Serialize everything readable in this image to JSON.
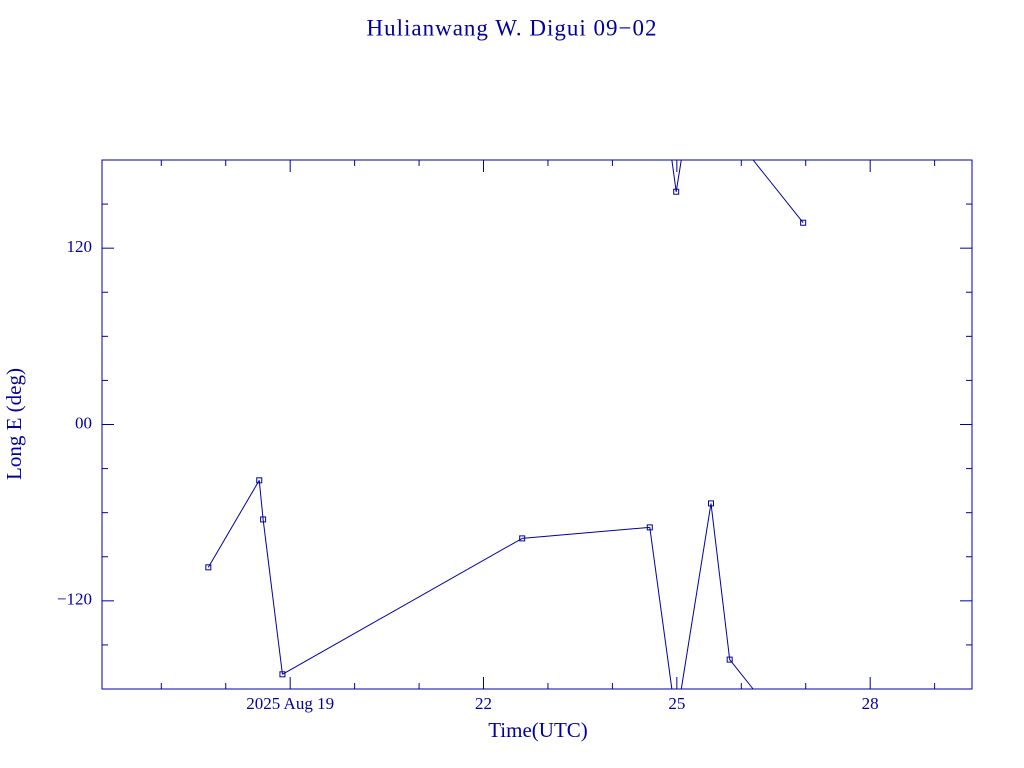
{
  "chart_data": {
    "type": "line",
    "title": "Hulianwang W. Digui 09−02",
    "xlabel": "Time(UTC)",
    "ylabel": "Long E (deg)",
    "x": [
      17.73,
      18.52,
      18.58,
      18.88,
      22.6,
      24.58,
      24.99,
      25.53,
      25.82,
      26.96
    ],
    "series": [
      {
        "color": "#0000a0",
        "values": [
          -97.2,
          -38,
          -64.6,
          -170,
          -77.5,
          -70,
          158.4,
          -53.7,
          -160,
          137.3
        ]
      }
    ],
    "xlim": [
      16.08,
      29.58
    ],
    "ylim": [
      -180,
      180
    ],
    "xticks": [
      {
        "value": 19,
        "label": "2025 Aug 19"
      },
      22,
      25,
      28
    ],
    "xminor": [
      17,
      18,
      20,
      21,
      23,
      24,
      26,
      27,
      29
    ],
    "yticks": [
      {
        "value": -120,
        "label": "−120"
      },
      {
        "value": 0,
        "label": "00"
      },
      120
    ],
    "yminor": [
      -150,
      -90,
      -60,
      -30,
      30,
      60,
      90,
      150
    ],
    "wrap": 360
  }
}
